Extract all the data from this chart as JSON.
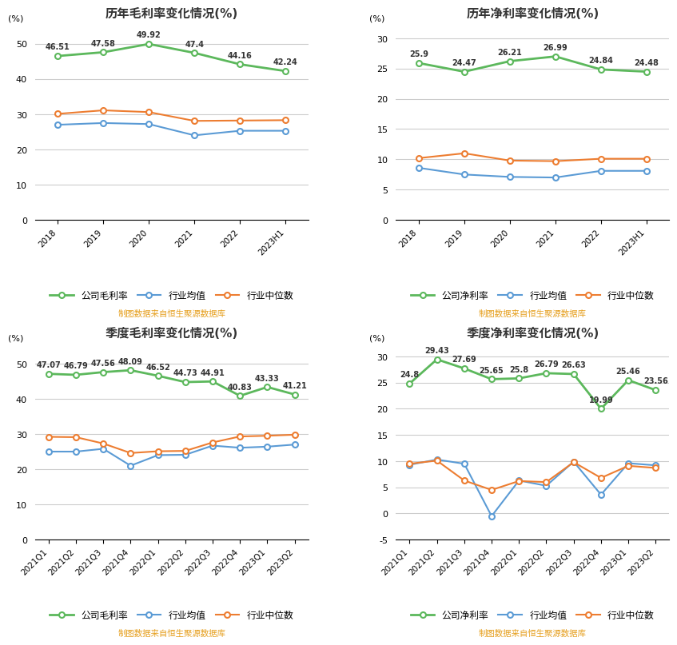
{
  "annual_gross": {
    "title": "历年毛利率变化情况(%)",
    "x_labels": [
      "2018",
      "2019",
      "2020",
      "2021",
      "2022",
      "2023H1"
    ],
    "company": [
      46.51,
      47.58,
      49.92,
      47.4,
      44.16,
      42.24
    ],
    "industry_avg": [
      27.0,
      27.5,
      27.2,
      24.0,
      25.3,
      25.3
    ],
    "industry_median": [
      30.1,
      31.1,
      30.6,
      28.1,
      28.2,
      28.3
    ],
    "ylim": [
      0,
      55
    ],
    "yticks": [
      0,
      10,
      20,
      30,
      40,
      50
    ]
  },
  "annual_net": {
    "title": "历年净利率变化情况(%)",
    "x_labels": [
      "2018",
      "2019",
      "2020",
      "2021",
      "2022",
      "2023H1"
    ],
    "company": [
      25.9,
      24.47,
      26.21,
      26.99,
      24.84,
      24.48
    ],
    "industry_avg": [
      8.6,
      7.5,
      7.1,
      7.0,
      8.1,
      8.1
    ],
    "industry_median": [
      10.2,
      11.0,
      9.8,
      9.7,
      10.1,
      10.1
    ],
    "ylim": [
      0,
      32
    ],
    "yticks": [
      0,
      5,
      10,
      15,
      20,
      25,
      30
    ]
  },
  "quarterly_gross": {
    "title": "季度毛利率变化情况(%)",
    "x_labels": [
      "2021Q1",
      "2021Q2",
      "2021Q3",
      "2021Q4",
      "2022Q1",
      "2022Q2",
      "2022Q3",
      "2022Q4",
      "2023Q1",
      "2023Q2"
    ],
    "company": [
      47.07,
      46.79,
      47.56,
      48.09,
      46.52,
      44.73,
      44.91,
      40.83,
      43.33,
      41.21
    ],
    "industry_avg": [
      25.0,
      25.0,
      25.8,
      21.0,
      24.0,
      24.1,
      26.7,
      26.1,
      26.4,
      27.0
    ],
    "industry_median": [
      29.2,
      29.1,
      27.3,
      24.6,
      25.1,
      25.2,
      27.6,
      29.3,
      29.5,
      29.8
    ],
    "ylim": [
      0,
      55
    ],
    "yticks": [
      0,
      10,
      20,
      30,
      40,
      50
    ]
  },
  "quarterly_net": {
    "title": "季度净利率变化情况(%)",
    "x_labels": [
      "2021Q1",
      "2021Q2",
      "2021Q3",
      "2021Q4",
      "2022Q1",
      "2022Q2",
      "2022Q3",
      "2022Q4",
      "2023Q1",
      "2023Q2"
    ],
    "company": [
      24.8,
      29.43,
      27.69,
      25.65,
      25.8,
      26.79,
      26.63,
      19.99,
      25.46,
      23.56
    ],
    "industry_avg": [
      9.3,
      10.3,
      9.5,
      -0.5,
      6.3,
      5.3,
      9.9,
      3.6,
      9.6,
      9.2
    ],
    "industry_median": [
      9.5,
      10.1,
      6.3,
      4.5,
      6.2,
      6.0,
      9.8,
      6.8,
      9.1,
      8.7
    ],
    "ylim": [
      -5,
      32
    ],
    "yticks": [
      -5,
      0,
      5,
      10,
      15,
      20,
      25,
      30
    ]
  },
  "legend_gross_company": "公司毛利率",
  "legend_net_company": "公司净利率",
  "legend_avg": "行业均值",
  "legend_median": "行业中位数",
  "source_text": "制图数据来自恒生聚源数据库",
  "color_company": "#5cb85c",
  "color_avg": "#5b9bd5",
  "color_median": "#ed7d31",
  "color_source": "#e6a020",
  "bg_color": "#ffffff",
  "grid_color": "#cccccc",
  "ylabel": "(%)"
}
